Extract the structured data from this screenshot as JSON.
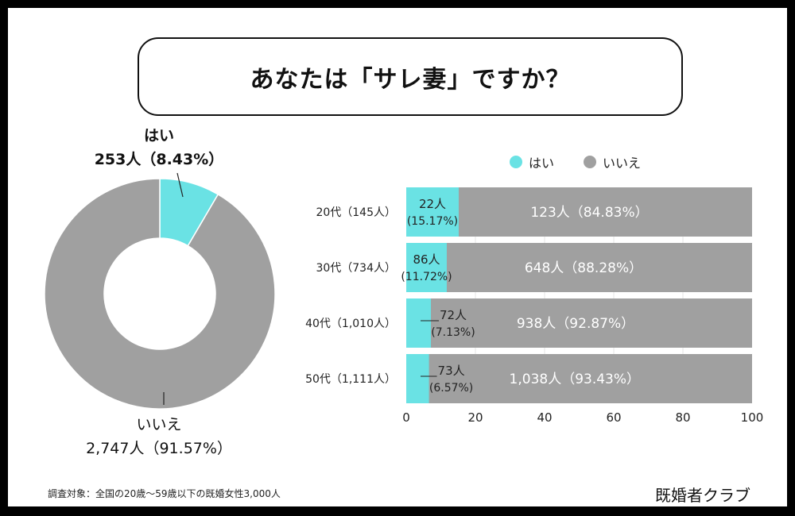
{
  "title": "あなたは「サレ妻」ですか？",
  "colors": {
    "yes": "#6ae2e4",
    "no": "#a0a0a0"
  },
  "chart_data": [
    {
      "type": "pie",
      "variant": "donut",
      "slices": [
        {
          "name": "はい",
          "count": 253,
          "percent": 8.43,
          "label_count": "253人（8.43%）"
        },
        {
          "name": "いいえ",
          "count": 2747,
          "percent": 91.57,
          "label_count": "2,747人（91.57%）"
        }
      ]
    },
    {
      "type": "bar",
      "orientation": "horizontal",
      "stacked": true,
      "legend": [
        "はい",
        "いいえ"
      ],
      "legend_position": "top",
      "categories": [
        "20代（145人）",
        "30代（734人）",
        "40代（1,010人）",
        "50代（1,111人）"
      ],
      "series": [
        {
          "name": "はい",
          "values": [
            15.17,
            11.72,
            7.13,
            6.57
          ],
          "counts": [
            "22人",
            "86人",
            "72人",
            "73人"
          ],
          "pct_labels": [
            "(15.17%)",
            "(11.72%)",
            "(7.13%)",
            "(6.57%)"
          ]
        },
        {
          "name": "いいえ",
          "values": [
            84.83,
            88.28,
            92.87,
            93.43
          ],
          "labels": [
            "123人（84.83%）",
            "648人（88.28%）",
            "938人（92.87%）",
            "1,038人（93.43%）"
          ]
        }
      ],
      "xlim": [
        0,
        100
      ],
      "xticks": [
        "0",
        "20",
        "40",
        "60",
        "80",
        "100"
      ],
      "grid": true
    }
  ],
  "footnote": "調査対象：全国の20歳〜59歳以下の既婚女性3,000人",
  "brand": "既婚者クラブ"
}
